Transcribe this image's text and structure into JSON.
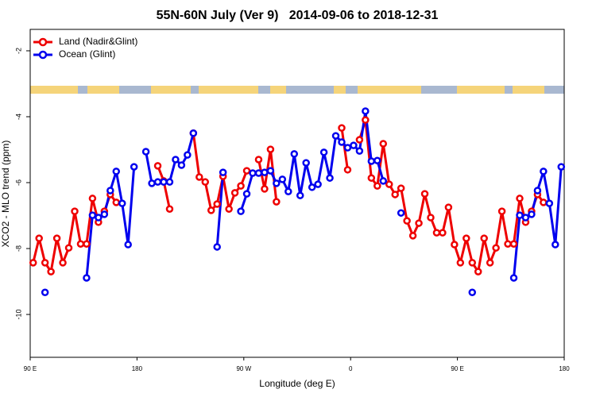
{
  "chart_data": {
    "type": "line",
    "title": "55N-60N July (Ver 9)   2014-09-06 to 2018-12-31",
    "x_label": "Longitude (deg E)",
    "y_label": "XCO2 - MLO trend (ppm)",
    "xlim": [
      90,
      540
    ],
    "xticks": [
      {
        "value": 90,
        "label": "90 E"
      },
      {
        "value": 180,
        "label": "180"
      },
      {
        "value": 270,
        "label": "90 W"
      },
      {
        "value": 360,
        "label": "0"
      },
      {
        "value": 450,
        "label": "90 E"
      },
      {
        "value": 540,
        "label": "180"
      }
    ],
    "ylim": [
      -11.3,
      -1.35
    ],
    "yticks": [
      -2,
      -4,
      -6,
      -8,
      -10
    ],
    "legend": "top-left",
    "series": [
      {
        "name": "Land (Nadir&Glint)",
        "color": "#ee0000",
        "x": [
          92.5,
          97.5,
          102.5,
          107.5,
          112.5,
          117.5,
          122.5,
          127.5,
          132.5,
          137.5,
          142.5,
          147.5,
          152.5,
          157.5,
          162.5,
          167.5,
          197.5,
          202.5,
          207.5,
          212.5,
          227.5,
          232.5,
          237.5,
          242.5,
          247.5,
          252.5,
          257.5,
          262.5,
          267.5,
          272.5,
          277.5,
          282.5,
          287.5,
          292.5,
          297.5,
          302.5,
          352.5,
          357.5,
          362.5,
          367.5,
          372.5,
          377.5,
          382.5,
          387.5,
          392.5,
          397.5,
          402.5,
          407.5,
          412.5,
          417.5,
          422.5,
          427.5,
          432.5,
          437.5,
          442.5,
          447.5,
          452.5,
          457.5,
          462.5,
          467.5,
          472.5,
          477.5,
          482.5,
          487.5,
          492.5,
          497.5,
          502.5,
          507.5,
          512.5,
          517.5,
          522.5
        ],
        "values": [
          -8.43,
          -7.69,
          -8.43,
          -8.7,
          -7.69,
          -8.43,
          -7.98,
          -6.87,
          -7.86,
          -7.86,
          -6.48,
          -7.2,
          -6.87,
          -6.36,
          -6.6,
          null,
          -5.49,
          -5.95,
          -6.8,
          null,
          -4.5,
          -5.83,
          -5.98,
          -6.84,
          -6.65,
          -5.81,
          -6.8,
          -6.31,
          -6.1,
          -5.64,
          null,
          -5.3,
          -6.19,
          -4.99,
          -6.58,
          null,
          -4.34,
          -5.61,
          null,
          -4.7,
          -4.1,
          -5.86,
          -6.1,
          -4.82,
          -6.05,
          -6.36,
          -6.17,
          -7.16,
          -7.61,
          -7.23,
          -6.34,
          -7.06,
          -7.52,
          -7.52,
          -6.75,
          -7.88,
          -8.43,
          -7.69,
          -8.43,
          -8.7,
          -7.69,
          -8.43,
          -7.98,
          -6.87,
          -7.86,
          -7.86,
          -6.48,
          -7.2,
          -6.87,
          -6.36,
          -6.6
        ]
      },
      {
        "name": "Ocean (Glint)",
        "color": "#0000ee",
        "x": [
          102.5,
          107.5,
          137.5,
          142.5,
          147.5,
          152.5,
          157.5,
          162.5,
          167.5,
          172.5,
          177.5,
          182.5,
          187.5,
          192.5,
          197.5,
          202.5,
          207.5,
          212.5,
          217.5,
          222.5,
          227.5,
          232.5,
          247.5,
          252.5,
          257.5,
          267.5,
          272.5,
          277.5,
          282.5,
          287.5,
          292.5,
          297.5,
          302.5,
          307.5,
          312.5,
          317.5,
          322.5,
          327.5,
          332.5,
          337.5,
          342.5,
          347.5,
          352.5,
          357.5,
          362.5,
          367.5,
          372.5,
          377.5,
          382.5,
          387.5,
          392.5,
          402.5,
          407.5,
          462.5,
          467.5,
          497.5,
          502.5,
          507.5,
          512.5,
          517.5,
          522.5,
          527.5,
          532.5,
          537.5
        ],
        "values": [
          -9.33,
          null,
          -8.89,
          -6.99,
          -7.06,
          -6.96,
          -6.24,
          -5.66,
          -6.63,
          -7.88,
          -5.52,
          null,
          -5.06,
          -6.02,
          -5.98,
          -5.98,
          -5.98,
          -5.3,
          -5.47,
          -5.16,
          -4.5,
          null,
          -7.95,
          -5.69,
          null,
          -6.87,
          -6.34,
          -5.71,
          -5.71,
          -5.69,
          -5.64,
          -6.02,
          -5.9,
          -6.27,
          -5.13,
          -6.39,
          -5.4,
          -6.14,
          -6.05,
          -5.08,
          -5.86,
          -4.58,
          -4.77,
          -4.94,
          -4.87,
          -5.04,
          -3.83,
          -5.35,
          -5.33,
          -5.95,
          null,
          -6.92,
          null,
          -9.33,
          null,
          -8.89,
          -6.99,
          -7.06,
          -6.96,
          -6.24,
          -5.66,
          -6.63,
          -7.88,
          -5.52
        ]
      }
    ]
  }
}
